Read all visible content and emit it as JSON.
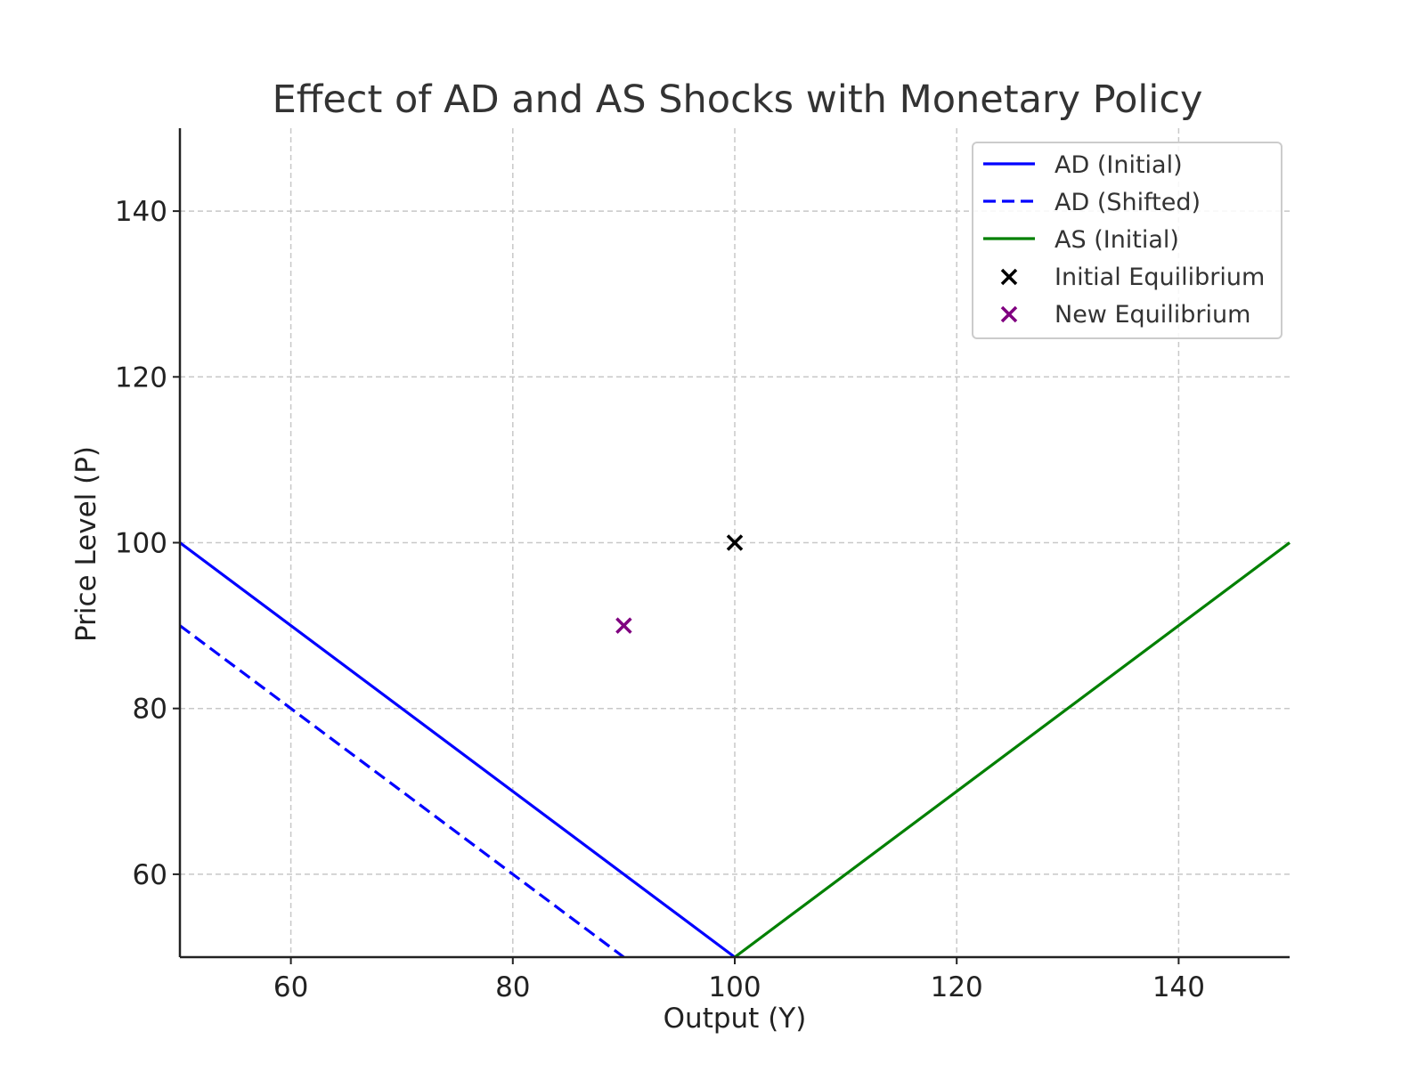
{
  "chart_data": {
    "type": "line",
    "title": "Effect of AD and AS Shocks with Monetary Policy",
    "xlabel": "Output (Y)",
    "ylabel": "Price Level (P)",
    "xlim": [
      50,
      150
    ],
    "ylim": [
      50,
      150
    ],
    "xticks": [
      60,
      80,
      100,
      120,
      140
    ],
    "yticks": [
      60,
      80,
      100,
      120,
      140
    ],
    "grid": true,
    "legend_position": "top-right",
    "series": [
      {
        "name": "AD (Initial)",
        "kind": "line",
        "style": "solid",
        "color": "#0000ff",
        "x": [
          50,
          100
        ],
        "y": [
          100,
          50
        ]
      },
      {
        "name": "AD (Shifted)",
        "kind": "line",
        "style": "dashed",
        "color": "#0000ff",
        "x": [
          50,
          90
        ],
        "y": [
          90,
          50
        ]
      },
      {
        "name": "AS (Initial)",
        "kind": "line",
        "style": "solid",
        "color": "#008000",
        "x": [
          100,
          150
        ],
        "y": [
          50,
          100
        ]
      },
      {
        "name": "Initial Equilibrium",
        "kind": "marker",
        "marker": "x",
        "color": "#000000",
        "x": [
          100
        ],
        "y": [
          100
        ]
      },
      {
        "name": "New Equilibrium",
        "kind": "marker",
        "marker": "x",
        "color": "#800080",
        "x": [
          90
        ],
        "y": [
          90
        ]
      }
    ]
  }
}
